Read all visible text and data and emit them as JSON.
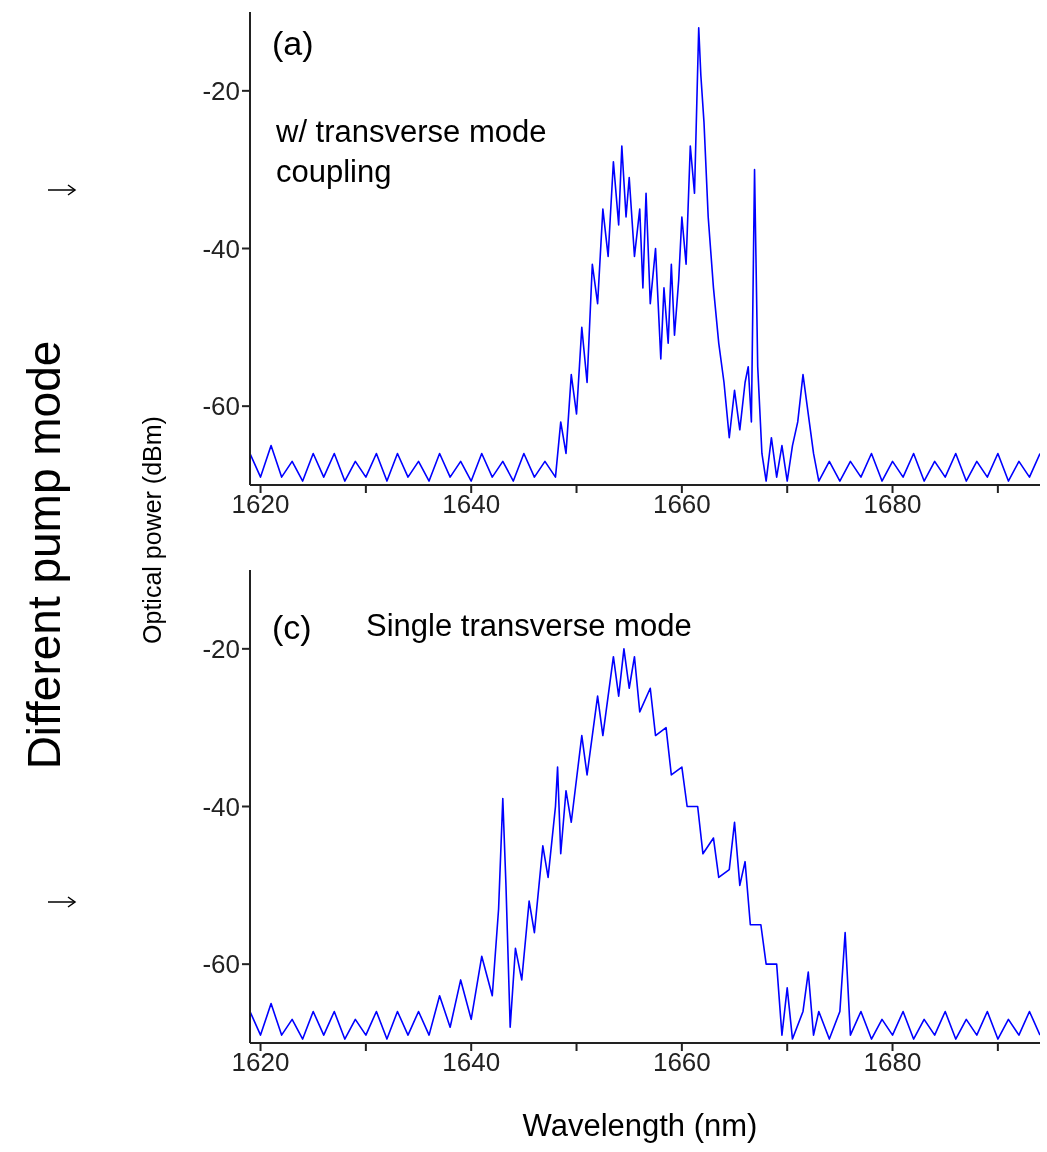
{
  "chart_data": [
    {
      "type": "line",
      "xlabel": null,
      "ylabel": "Optical power (dBm)",
      "annotations": [
        "(a)",
        "w/ transverse mode coupling",
        "Different pump mode"
      ],
      "xlim": [
        1619,
        1694
      ],
      "ylim": [
        -70,
        -10
      ],
      "xticks": [
        1620,
        {
          "value": 1630,
          "label": null
        },
        1640,
        {
          "value": 1650,
          "label": null
        },
        1660,
        {
          "value": 1670,
          "label": null
        },
        1680,
        {
          "value": 1690,
          "label": null
        }
      ],
      "yticks": [
        -60,
        -40,
        -20
      ],
      "grid": false,
      "legend": false,
      "marker": "none",
      "line_style": "solid",
      "series": [
        {
          "color": "#0000ff",
          "x": [
            1619,
            1620,
            1621,
            1622,
            1623,
            1624,
            1625,
            1626,
            1627,
            1628,
            1629,
            1630,
            1631,
            1632,
            1633,
            1634,
            1635,
            1636,
            1637,
            1638,
            1639,
            1640,
            1641,
            1642,
            1643,
            1644,
            1645,
            1646,
            1647,
            1648,
            1648.5,
            1649,
            1649.5,
            1650,
            1650.5,
            1651,
            1651.5,
            1652,
            1652.5,
            1653,
            1653.5,
            1654,
            1654.3,
            1654.7,
            1655,
            1655.5,
            1656,
            1656.3,
            1656.6,
            1657,
            1657.5,
            1658,
            1658.3,
            1658.7,
            1659,
            1659.3,
            1659.7,
            1660,
            1660.4,
            1660.8,
            1661.2,
            1661.6,
            1661.8,
            1662.1,
            1662.5,
            1663,
            1663.5,
            1664,
            1664.5,
            1665,
            1665.5,
            1666,
            1666.3,
            1666.6,
            1666.9,
            1667.2,
            1667.6,
            1668,
            1668.5,
            1669,
            1669.5,
            1670,
            1670.5,
            1671,
            1671.5,
            1672,
            1672.5,
            1673,
            1674,
            1675,
            1676,
            1677,
            1678,
            1679,
            1680,
            1681,
            1682,
            1683,
            1684,
            1685,
            1686,
            1687,
            1688,
            1689,
            1690,
            1691,
            1692,
            1693,
            1694
          ],
          "values": [
            -66,
            -69,
            -65,
            -69,
            -67,
            -69.5,
            -66,
            -69,
            -66,
            -69.5,
            -67,
            -69,
            -66,
            -69.5,
            -66,
            -69,
            -67,
            -69.5,
            -66,
            -69,
            -67,
            -69.5,
            -66,
            -69,
            -67,
            -69.5,
            -66,
            -69,
            -67,
            -69,
            -62,
            -66,
            -56,
            -61,
            -50,
            -57,
            -42,
            -47,
            -35,
            -41,
            -29,
            -37,
            -27,
            -36,
            -31,
            -41,
            -35,
            -45,
            -33,
            -47,
            -40,
            -54,
            -45,
            -52,
            -42,
            -51,
            -44,
            -36,
            -42,
            -27,
            -33,
            -12,
            -18,
            -24,
            -36,
            -45,
            -52,
            -57,
            -64,
            -58,
            -63,
            -57,
            -55,
            -62,
            -30,
            -55,
            -66,
            -69.5,
            -64,
            -69,
            -65,
            -69.5,
            -65,
            -62,
            -56,
            -61,
            -66,
            -69.5,
            -67,
            -69.5,
            -67,
            -69,
            -66,
            -69.5,
            -67,
            -69,
            -66,
            -69.5,
            -67,
            -69,
            -66,
            -69.5,
            -67,
            -69,
            -66,
            -69.5,
            -67,
            -69,
            -66
          ]
        }
      ]
    },
    {
      "type": "line",
      "xlabel": "Wavelength (nm)",
      "annotations": [
        "(c)",
        "Single transverse mode"
      ],
      "xlim": [
        1619,
        1694
      ],
      "ylim": [
        -70,
        -10
      ],
      "xticks": [
        1620,
        {
          "value": 1630,
          "label": null
        },
        1640,
        {
          "value": 1650,
          "label": null
        },
        1660,
        {
          "value": 1670,
          "label": null
        },
        1680,
        {
          "value": 1690,
          "label": null
        }
      ],
      "yticks": [
        -60,
        -40,
        -20
      ],
      "grid": false,
      "legend": false,
      "marker": "none",
      "line_style": "solid",
      "series": [
        {
          "color": "#0000ff",
          "x": [
            1619,
            1620,
            1621,
            1622,
            1623,
            1624,
            1625,
            1626,
            1627,
            1628,
            1629,
            1630,
            1631,
            1632,
            1633,
            1634,
            1635,
            1636,
            1637,
            1638,
            1639,
            1640,
            1641,
            1642,
            1642.6,
            1643,
            1643.3,
            1643.7,
            1644.2,
            1644.8,
            1645.5,
            1646,
            1646.8,
            1647.3,
            1648,
            1648.2,
            1648.5,
            1649,
            1649.5,
            1650.5,
            1651,
            1652,
            1652.5,
            1653.5,
            1654,
            1654.5,
            1655,
            1655.5,
            1656,
            1657,
            1657.5,
            1658.5,
            1659,
            1660,
            1660.5,
            1661.5,
            1662,
            1663,
            1663.5,
            1664.5,
            1665,
            1665.5,
            1666,
            1666.5,
            1667.5,
            1668,
            1669,
            1669.5,
            1670,
            1670.5,
            1671.5,
            1672,
            1672.5,
            1673,
            1674,
            1675,
            1675.5,
            1676,
            1677,
            1678,
            1679,
            1680,
            1681,
            1682,
            1683,
            1684,
            1685,
            1686,
            1687,
            1688,
            1689,
            1690,
            1691,
            1692,
            1693,
            1694
          ],
          "values": [
            -66,
            -69,
            -65,
            -69,
            -67,
            -69.5,
            -66,
            -69,
            -66,
            -69.5,
            -67,
            -69,
            -66,
            -69.5,
            -66,
            -69,
            -66,
            -69,
            -64,
            -68,
            -62,
            -67,
            -59,
            -64,
            -53,
            -39,
            -50,
            -68,
            -58,
            -62,
            -52,
            -56,
            -45,
            -49,
            -40,
            -35,
            -46,
            -38,
            -42,
            -31,
            -36,
            -26,
            -31,
            -21,
            -26,
            -20,
            -25,
            -21,
            -28,
            -25,
            -31,
            -30,
            -36,
            -35,
            -40,
            -40,
            -46,
            -44,
            -49,
            -48,
            -42,
            -50,
            -47,
            -55,
            -55,
            -60,
            -60,
            -69,
            -63,
            -69.5,
            -66,
            -61,
            -69,
            -66,
            -69.5,
            -66,
            -56,
            -69,
            -66,
            -69.5,
            -67,
            -69,
            -66,
            -69.5,
            -67,
            -69,
            -66,
            -69.5,
            -67,
            -69,
            -66,
            -69.5,
            -67,
            -69,
            -66,
            -69
          ]
        }
      ]
    }
  ]
}
